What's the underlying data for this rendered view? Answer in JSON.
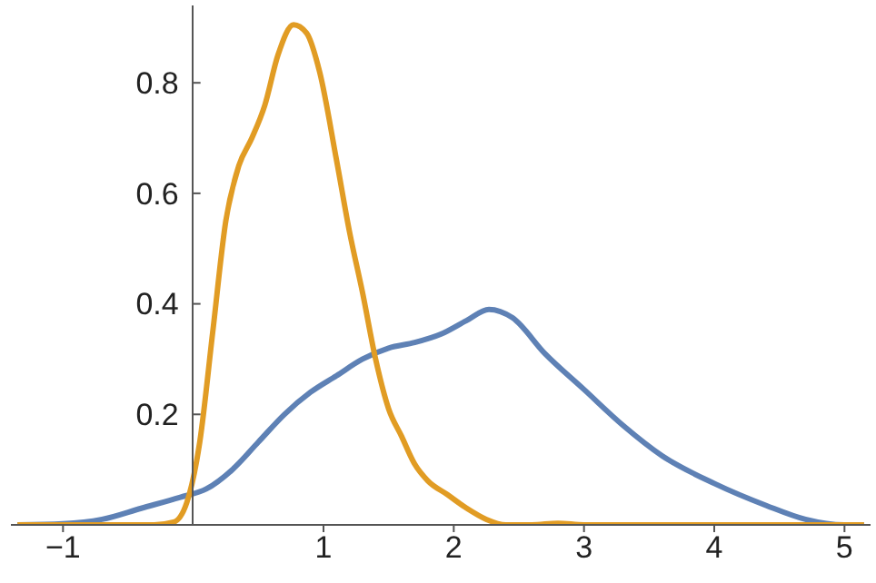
{
  "chart_data": {
    "type": "line",
    "xlim": [
      -1.4,
      5.2
    ],
    "ylim": [
      0,
      0.94
    ],
    "xticks": [
      {
        "value": -1,
        "label": "−1"
      },
      1,
      2,
      3,
      4,
      5
    ],
    "yticks": [
      0.2,
      0.4,
      0.6,
      0.8
    ],
    "marker": "none",
    "line_style": "solid",
    "series": [
      {
        "color": "#5e81b5",
        "x": [
          -1.35,
          -1,
          -0.7,
          -0.4,
          -0.1,
          0.1,
          0.3,
          0.5,
          0.7,
          0.9,
          1.1,
          1.3,
          1.5,
          1.7,
          1.9,
          2.1,
          2.27,
          2.45,
          2.7,
          3.0,
          3.3,
          3.6,
          4.0,
          4.4,
          4.7,
          5.0,
          5.15
        ],
        "values": [
          0,
          0.002,
          0.01,
          0.03,
          0.05,
          0.065,
          0.1,
          0.15,
          0.2,
          0.24,
          0.27,
          0.3,
          0.32,
          0.33,
          0.345,
          0.37,
          0.39,
          0.375,
          0.31,
          0.245,
          0.18,
          0.125,
          0.075,
          0.035,
          0.01,
          0,
          0
        ]
      },
      {
        "color": "#e19c24",
        "x": [
          -1.35,
          -0.3,
          -0.15,
          -0.05,
          0.05,
          0.15,
          0.25,
          0.35,
          0.45,
          0.55,
          0.65,
          0.77,
          0.87,
          0.97,
          1.1,
          1.2,
          1.3,
          1.4,
          1.5,
          1.6,
          1.7,
          1.8,
          1.95,
          2.1,
          2.25,
          2.4,
          2.6,
          2.8,
          3.0,
          5.15
        ],
        "values": [
          0,
          0,
          0.005,
          0.04,
          0.15,
          0.35,
          0.55,
          0.65,
          0.7,
          0.76,
          0.85,
          0.905,
          0.89,
          0.82,
          0.66,
          0.53,
          0.42,
          0.3,
          0.21,
          0.16,
          0.11,
          0.08,
          0.055,
          0.03,
          0.01,
          0,
          0,
          0.003,
          0,
          0
        ]
      }
    ]
  }
}
